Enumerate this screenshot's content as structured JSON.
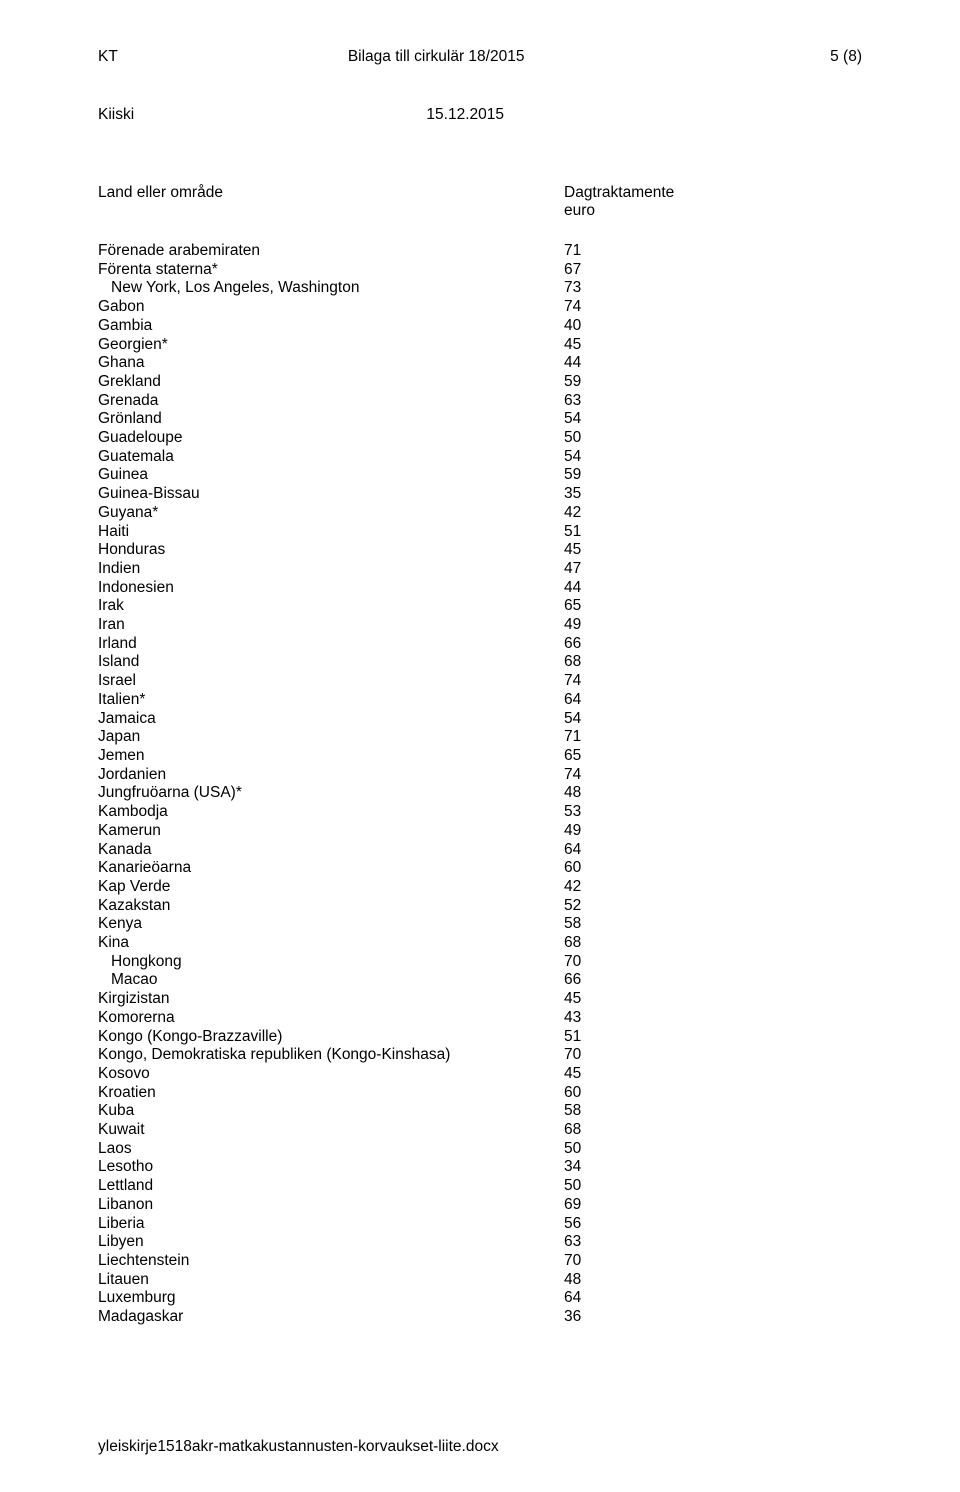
{
  "header": {
    "left": "KT",
    "center": "Bilaga till cirkulär 18/2015",
    "right": "5 (8)"
  },
  "subheader": {
    "left": "Kiiski",
    "right": "15.12.2015"
  },
  "columns": {
    "land": "Land eller område",
    "dag_line1": "Dagtraktamente",
    "dag_line2": "euro"
  },
  "rows": [
    {
      "label": "Förenade arabemiraten",
      "value": "71",
      "indent": false
    },
    {
      "label": "Förenta staterna*",
      "value": "67",
      "indent": false
    },
    {
      "label": "New York, Los Angeles, Washington",
      "value": "73",
      "indent": true
    },
    {
      "label": "Gabon",
      "value": "74",
      "indent": false
    },
    {
      "label": "Gambia",
      "value": "40",
      "indent": false
    },
    {
      "label": "Georgien*",
      "value": "45",
      "indent": false
    },
    {
      "label": "Ghana",
      "value": "44",
      "indent": false
    },
    {
      "label": "Grekland",
      "value": "59",
      "indent": false
    },
    {
      "label": "Grenada",
      "value": "63",
      "indent": false
    },
    {
      "label": "Grönland",
      "value": "54",
      "indent": false
    },
    {
      "label": "Guadeloupe",
      "value": "50",
      "indent": false
    },
    {
      "label": "Guatemala",
      "value": "54",
      "indent": false
    },
    {
      "label": "Guinea",
      "value": "59",
      "indent": false
    },
    {
      "label": "Guinea-Bissau",
      "value": "35",
      "indent": false
    },
    {
      "label": "Guyana*",
      "value": "42",
      "indent": false
    },
    {
      "label": "Haiti",
      "value": "51",
      "indent": false
    },
    {
      "label": "Honduras",
      "value": "45",
      "indent": false
    },
    {
      "label": "Indien",
      "value": "47",
      "indent": false
    },
    {
      "label": "Indonesien",
      "value": "44",
      "indent": false
    },
    {
      "label": "Irak",
      "value": "65",
      "indent": false
    },
    {
      "label": "Iran",
      "value": "49",
      "indent": false
    },
    {
      "label": "Irland",
      "value": "66",
      "indent": false
    },
    {
      "label": "Island",
      "value": "68",
      "indent": false
    },
    {
      "label": "Israel",
      "value": "74",
      "indent": false
    },
    {
      "label": "Italien*",
      "value": "64",
      "indent": false
    },
    {
      "label": "Jamaica",
      "value": "54",
      "indent": false
    },
    {
      "label": "Japan",
      "value": "71",
      "indent": false
    },
    {
      "label": "Jemen",
      "value": "65",
      "indent": false
    },
    {
      "label": "Jordanien",
      "value": "74",
      "indent": false
    },
    {
      "label": "Jungfruöarna (USA)*",
      "value": "48",
      "indent": false
    },
    {
      "label": "Kambodja",
      "value": "53",
      "indent": false
    },
    {
      "label": "Kamerun",
      "value": "49",
      "indent": false
    },
    {
      "label": "Kanada",
      "value": "64",
      "indent": false
    },
    {
      "label": "Kanarieöarna",
      "value": "60",
      "indent": false
    },
    {
      "label": "Kap Verde",
      "value": "42",
      "indent": false
    },
    {
      "label": "Kazakstan",
      "value": "52",
      "indent": false
    },
    {
      "label": "Kenya",
      "value": "58",
      "indent": false
    },
    {
      "label": "Kina",
      "value": "68",
      "indent": false
    },
    {
      "label": "Hongkong",
      "value": "70",
      "indent": true
    },
    {
      "label": "Macao",
      "value": "66",
      "indent": true
    },
    {
      "label": "Kirgizistan",
      "value": "45",
      "indent": false
    },
    {
      "label": "Komorerna",
      "value": "43",
      "indent": false
    },
    {
      "label": "Kongo (Kongo-Brazzaville)",
      "value": "51",
      "indent": false
    },
    {
      "label": "Kongo, Demokratiska republiken (Kongo-Kinshasa)",
      "value": "70",
      "indent": false
    },
    {
      "label": "Kosovo",
      "value": "45",
      "indent": false
    },
    {
      "label": "Kroatien",
      "value": "60",
      "indent": false
    },
    {
      "label": "Kuba",
      "value": "58",
      "indent": false
    },
    {
      "label": "Kuwait",
      "value": "68",
      "indent": false
    },
    {
      "label": "Laos",
      "value": "50",
      "indent": false
    },
    {
      "label": "Lesotho",
      "value": "34",
      "indent": false
    },
    {
      "label": "Lettland",
      "value": "50",
      "indent": false
    },
    {
      "label": "Libanon",
      "value": "69",
      "indent": false
    },
    {
      "label": "Liberia",
      "value": "56",
      "indent": false
    },
    {
      "label": "Libyen",
      "value": "63",
      "indent": false
    },
    {
      "label": "Liechtenstein",
      "value": "70",
      "indent": false
    },
    {
      "label": "Litauen",
      "value": "48",
      "indent": false
    },
    {
      "label": "Luxemburg",
      "value": "64",
      "indent": false
    },
    {
      "label": "Madagaskar",
      "value": "36",
      "indent": false
    }
  ],
  "footer": "yleiskirje1518akr-matkakustannusten-korvaukset-liite.docx"
}
